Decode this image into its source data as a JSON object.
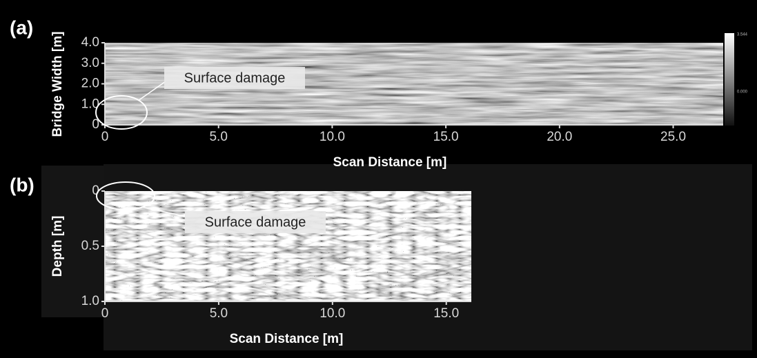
{
  "chart_data": [
    {
      "type": "image",
      "panel_label": "(a)",
      "xlabel": "Scan Distance [m]",
      "ylabel": "Bridge Width [m]",
      "xlim": [
        0,
        27.2
      ],
      "xticks": [
        0,
        {
          "value": 5,
          "label": "5.0"
        },
        {
          "value": 10,
          "label": "10.0"
        },
        {
          "value": 15,
          "label": "15.0"
        },
        {
          "value": 20,
          "label": "20.0"
        },
        {
          "value": 25,
          "label": "25.0"
        }
      ],
      "ylim": [
        0,
        4.0
      ],
      "yticks": [
        0,
        {
          "value": 1,
          "label": "1.0"
        },
        {
          "value": 2,
          "label": "2.0"
        },
        {
          "value": 3,
          "label": "3.0"
        },
        {
          "value": 4,
          "label": "4.0"
        }
      ],
      "annotation": "Surface damage",
      "colorbar_labels": [
        "3.544",
        "0.000"
      ]
    },
    {
      "type": "image",
      "panel_label": "(b)",
      "xlabel": "Scan Distance [m]",
      "ylabel": "Depth [m]",
      "xlim": [
        0,
        16.1
      ],
      "xticks": [
        0,
        {
          "value": 5,
          "label": "5.0"
        },
        {
          "value": 10,
          "label": "10.0"
        },
        {
          "value": 15,
          "label": "15.0"
        }
      ],
      "ylim": [
        0,
        1.0
      ],
      "y_inverted": true,
      "yticks": [
        0,
        0.5,
        {
          "value": 1,
          "label": "1.0"
        }
      ],
      "annotation": "Surface damage"
    }
  ]
}
